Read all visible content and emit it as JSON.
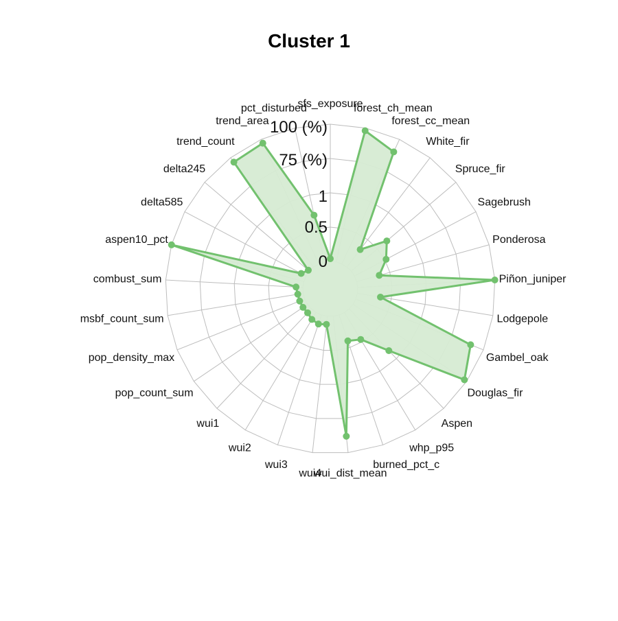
{
  "chart_data": {
    "type": "radar",
    "title": "Cluster 1",
    "axis_labels": [
      "0",
      "0.5",
      "1",
      "75 (%)",
      "100 (%)"
    ],
    "variables": [
      "sfs_exposure",
      "forest_ch_mean",
      "forest_cc_mean",
      "White_fir",
      "Spruce_fir",
      "Sagebrush",
      "Ponderosa",
      "Piñon_juniper",
      "Lodgepole",
      "Gambel_oak",
      "Douglas_fir",
      "Aspen",
      "whp_p95",
      "burned_pct_c",
      "wui_dist_mean",
      "wui4",
      "wui3",
      "wui2",
      "wui1",
      "pop_count_sum",
      "pop_density_max",
      "msbf_count_sum",
      "combust_sum",
      "aspen10_pct",
      "delta585",
      "delta245",
      "trend_count",
      "trend_area",
      "pct_disturbed"
    ],
    "series": [
      {
        "values": [
          0.02,
          0.98,
          0.9,
          0.16,
          0.34,
          0.26,
          0.17,
          1.0,
          0.17,
          0.9,
          0.98,
          0.42,
          0.23,
          0.2,
          0.88,
          0.06,
          0.07,
          0.06,
          0.04,
          0.04,
          0.04,
          0.04,
          0.05,
          1.0,
          0.04,
          0.01,
          0.96,
          0.97,
          0.35
        ],
        "color": "#72c16e",
        "fill": "#d6ebd3"
      }
    ],
    "ylim": [
      0,
      1
    ],
    "grid": true,
    "grid_color": "#bdbdbd"
  }
}
